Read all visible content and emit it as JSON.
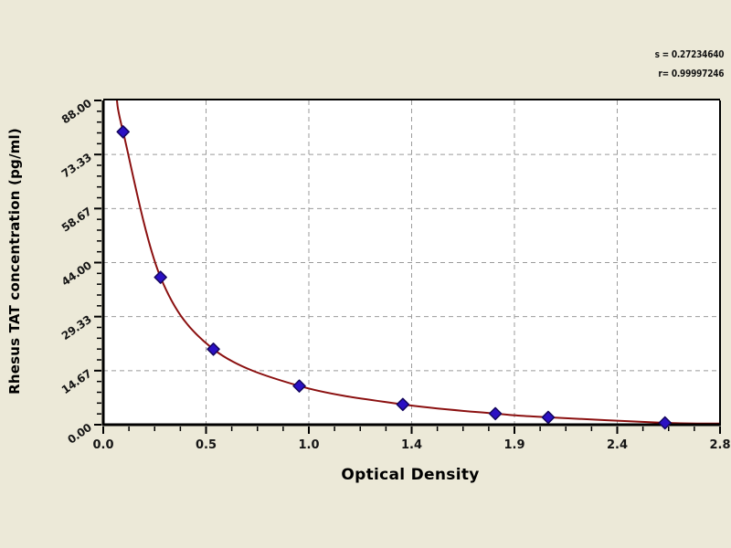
{
  "colors": {
    "page_background": "#ece9d8",
    "plot_background": "#ffffff",
    "axis": "#000000",
    "grid": "#9b9b9b",
    "curve": "#8b1010",
    "marker_fill": "#2b10c4",
    "marker_stroke": "#14065e",
    "text": "#151515"
  },
  "stats": {
    "s_line": "s = 0.27234640",
    "r_line": "r= 0.99997246"
  },
  "chart_data": {
    "type": "scatter",
    "title": "",
    "xlabel": "Optical Density",
    "ylabel": "Rhesus TAT concentration (pg/ml)",
    "xlim": [
      0,
      2.8
    ],
    "ylim": [
      0,
      88
    ],
    "x_tick_labels": [
      "0.0",
      "0.5",
      "1.0",
      "1.4",
      "1.9",
      "2.4",
      "2.8"
    ],
    "y_tick_labels": [
      "0.00",
      "14.67",
      "29.33",
      "44.00",
      "58.67",
      "73.33",
      "88.00"
    ],
    "grid": "dashed",
    "legend": "none",
    "annotations": [
      "s = 0.27234640",
      "r= 0.99997246"
    ],
    "series": [
      {
        "name": "standard-points",
        "marker": "diamond",
        "color": "#2b10c4",
        "points": [
          {
            "x": 0.09,
            "y": 79.5
          },
          {
            "x": 0.26,
            "y": 40.0
          },
          {
            "x": 0.5,
            "y": 20.5
          },
          {
            "x": 0.89,
            "y": 10.5
          },
          {
            "x": 1.36,
            "y": 5.5
          },
          {
            "x": 1.78,
            "y": 3.0
          },
          {
            "x": 2.02,
            "y": 2.0
          },
          {
            "x": 2.55,
            "y": 0.5
          }
        ]
      }
    ],
    "fit_curve": {
      "color": "#8b1010",
      "extends_from": {
        "x": 0.062,
        "y": 88
      },
      "extends_to": {
        "x": 2.8,
        "y": 0.3
      }
    }
  }
}
